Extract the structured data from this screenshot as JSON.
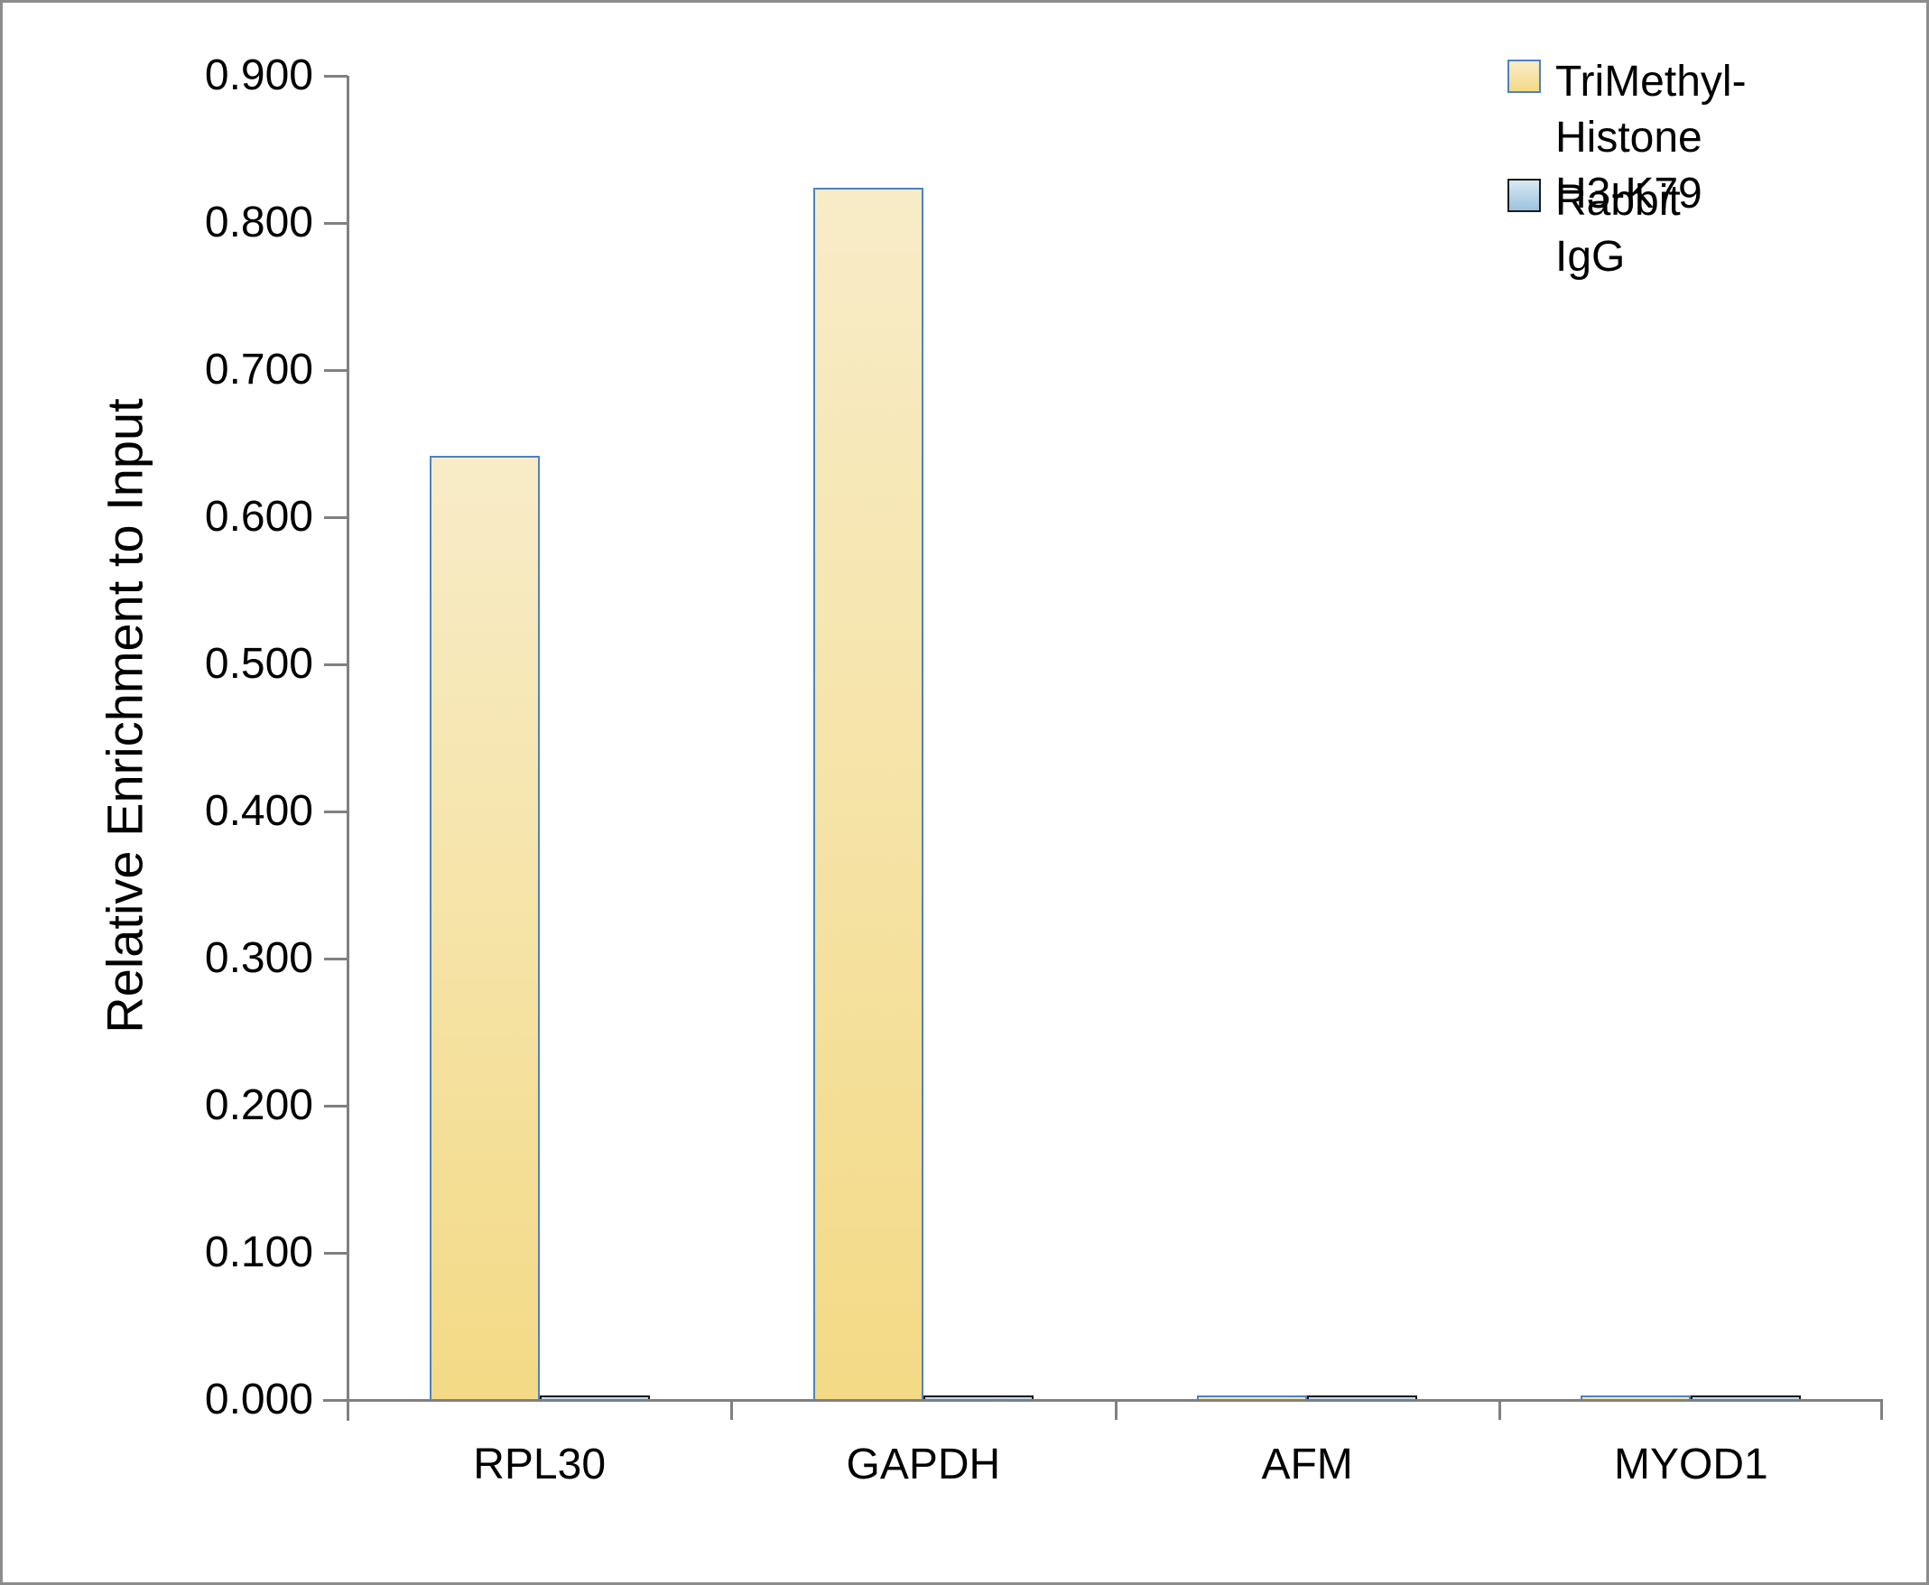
{
  "figure": {
    "background": "#FFFFFF",
    "frame_border_color": "#8C8C8C"
  },
  "chart_data": {
    "type": "bar",
    "title": "",
    "categories": [
      "RPL30",
      "GAPDH",
      "AFM",
      "MYOD1"
    ],
    "series": [
      {
        "name": "TriMethyl-Histone H3-K79",
        "values": [
          0.642,
          0.824,
          0.003,
          0.003
        ],
        "fill_top": "#F8ECC8",
        "fill_bottom": "#F3DA86",
        "border": "#4F81BD"
      },
      {
        "name": "Rabbit IgG",
        "values": [
          0.003,
          0.003,
          0.003,
          0.003
        ],
        "fill_top": "#D8E9F4",
        "fill_bottom": "#9CC2DD",
        "border": "#1A1A1A"
      }
    ],
    "xlabel": "",
    "ylabel": "Relative Enrichment to Input",
    "ylim": [
      0,
      0.9
    ],
    "ytick_step": 0.1,
    "ytick_decimals": 3,
    "grid": false,
    "legend_position": "top-right",
    "axis_color": "#808080",
    "text_color": "#000000"
  },
  "legend": {
    "items": [
      {
        "label": "TriMethyl-Histone\nH3-K79"
      },
      {
        "label": "Rabbit IgG"
      }
    ]
  }
}
